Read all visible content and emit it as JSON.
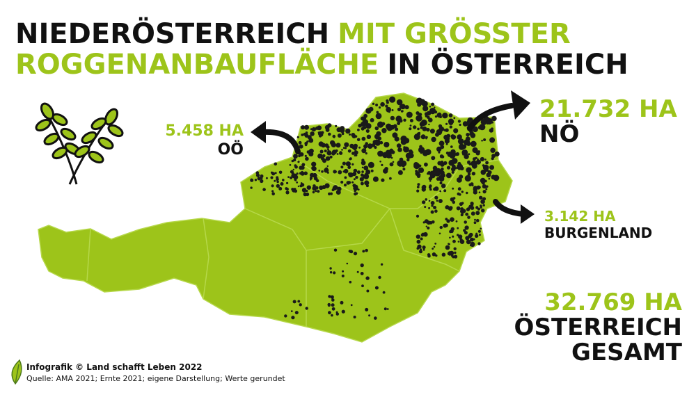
{
  "title": {
    "line1": [
      "NIEDERÖSTERREICH",
      "MIT GRÖSSTER"
    ],
    "line2": [
      "ROGGENANBAUFLÄCHE",
      "IN ÖSTERREICH"
    ]
  },
  "regions": [
    {
      "area": "5.458 HA",
      "name": "OÖ"
    },
    {
      "area": "21.732 HA",
      "name": "NÖ"
    },
    {
      "area": "3.142 HA",
      "name": "BURGENLAND"
    }
  ],
  "total": {
    "area": "32.769 HA",
    "lines": [
      "ÖSTERREICH",
      "GESAMT"
    ]
  },
  "footer": {
    "credit": "Infografik © Land schafft Leben 2022",
    "source": "Quelle: AMA 2021; Ernte 2021; eigene Darstellung; Werte gerundet"
  }
}
